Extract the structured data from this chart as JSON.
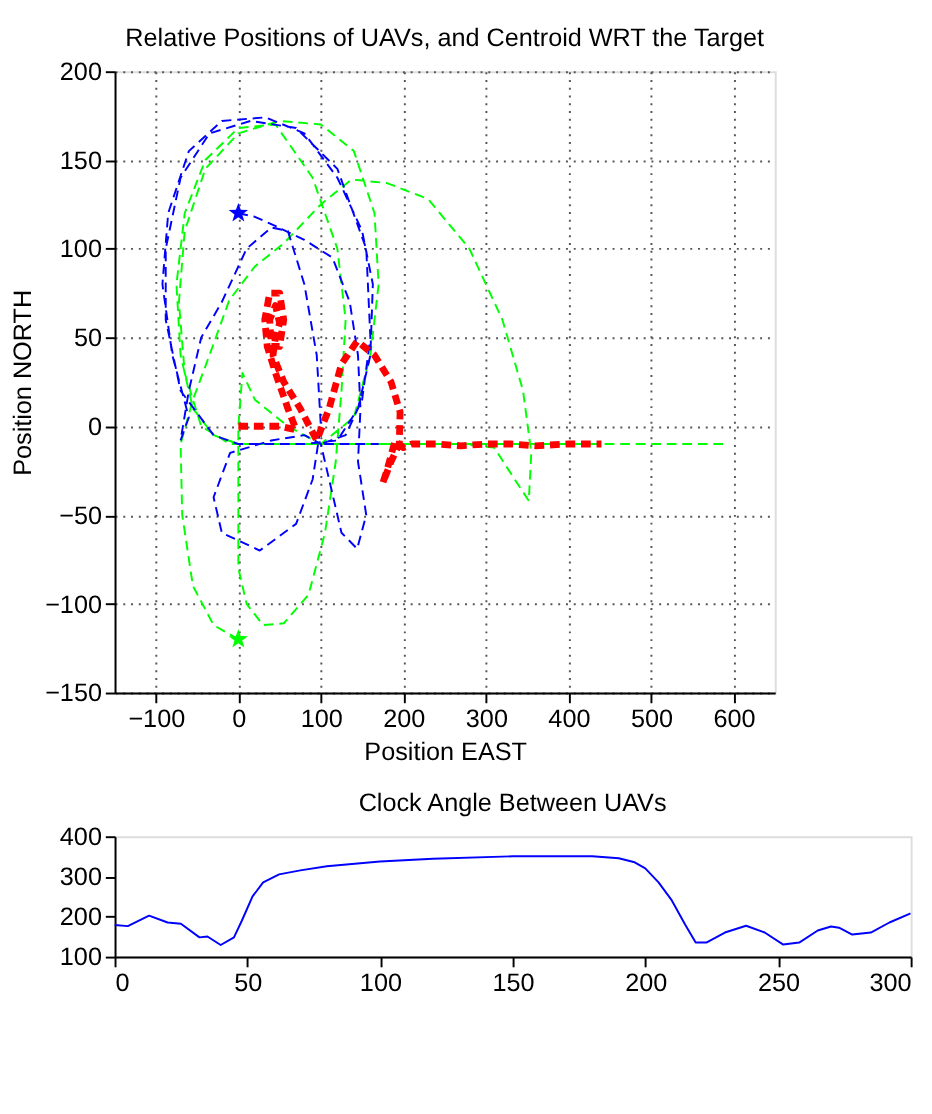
{
  "chart_data": [
    {
      "type": "line",
      "title": "Relative Positions of UAVs, and Centroid WRT the Target",
      "xlabel": "Position EAST",
      "ylabel": "Position NORTH",
      "xlim": [
        -150,
        650
      ],
      "ylim": [
        -150,
        200
      ],
      "xticks": [
        -100,
        0,
        100,
        200,
        300,
        400,
        500,
        600
      ],
      "yticks": [
        -150,
        -100,
        -50,
        0,
        50,
        100,
        150,
        200
      ],
      "grid": true,
      "series": [
        {
          "color": "#0000ff",
          "line_style": "dashed",
          "x": [
            0,
            20,
            44,
            80,
            114,
            135,
            145,
            148,
            145,
            155,
            144,
            125,
            110,
            100,
            80,
            40,
            -10,
            -30,
            -20,
            26,
            70,
            90,
            100,
            95,
            80,
            60,
            40,
            10,
            -20,
            -45,
            -60,
            -70,
            -60,
            -80,
            -92,
            -85,
            -60,
            -20,
            33,
            80,
            120,
            150,
            163,
            160,
            145,
            120,
            80,
            40,
            0,
            -30,
            -70,
            -88,
            -88,
            -70,
            -35,
            15,
            70,
            120,
            155,
            160,
            150,
            130,
            100,
            150,
            170
          ],
          "values": [
            120,
            118,
            113,
            105,
            95,
            70,
            40,
            10,
            -20,
            -50,
            -69,
            -60,
            -30,
            -10,
            -5,
            -8,
            -15,
            -40,
            -60,
            -70,
            -55,
            -30,
            0,
            40,
            80,
            110,
            112,
            100,
            70,
            50,
            20,
            -8,
            5,
            40,
            80,
            120,
            155,
            172,
            174,
            165,
            140,
            110,
            80,
            40,
            10,
            -8,
            -10,
            -10,
            -10,
            -5,
            20,
            60,
            100,
            140,
            165,
            172,
            168,
            145,
            100,
            50,
            15,
            -5,
            -10,
            -10,
            -10
          ]
        },
        {
          "color": "#00ff00",
          "line_style": "dashed",
          "x": [
            0,
            -30,
            -55,
            -68,
            -70,
            -55,
            -35,
            -11,
            20,
            55,
            100,
            137,
            180,
            230,
            280,
            320,
            345,
            355,
            352,
            335,
            310,
            270,
            220,
            170,
            130,
            100,
            60,
            20,
            5,
            0,
            0,
            0,
            10,
            30,
            55,
            85,
            105,
            118,
            125,
            130,
            120,
            90,
            45,
            0,
            -40,
            -65,
            -75,
            -70,
            -55,
            -30,
            0,
            50,
            100,
            140,
            160,
            170,
            165,
            140,
            100,
            50,
            0,
            -40,
            -65,
            -72,
            -65,
            -45,
            -10,
            50,
            120,
            200,
            300,
            400,
            500,
            590
          ],
          "values": [
            -120,
            -112,
            -90,
            -50,
            -10,
            15,
            40,
            71,
            90,
            103,
            125,
            139,
            137,
            128,
            100,
            60,
            20,
            -15,
            -42,
            -30,
            -12,
            -10,
            -10,
            -10,
            -10,
            -10,
            0,
            15,
            30,
            0,
            -40,
            -80,
            -100,
            -112,
            -111,
            -95,
            -60,
            -20,
            20,
            60,
            100,
            140,
            170,
            168,
            150,
            120,
            80,
            40,
            10,
            -5,
            -10,
            -10,
            -10,
            5,
            40,
            80,
            120,
            155,
            170,
            172,
            165,
            145,
            110,
            70,
            30,
            0,
            -10,
            -10,
            -10,
            -10,
            -10,
            -10,
            -10,
            -10
          ]
        },
        {
          "color": "#ff0000",
          "line_style": "dashed",
          "x": [
            0,
            50,
            70,
            60,
            45,
            35,
            32,
            38,
            50,
            55,
            50,
            40,
            38,
            45,
            50,
            45,
            42,
            55,
            75,
            95,
            110,
            125,
            144,
            165,
            185,
            196,
            195,
            185,
            175,
            180,
            190,
            200,
            210,
            240,
            270,
            300,
            330,
            360,
            400,
            440
          ],
          "values": [
            0,
            0,
            -2,
            10,
            30,
            45,
            60,
            75,
            75,
            60,
            45,
            45,
            60,
            68,
            58,
            50,
            40,
            25,
            10,
            -8,
            10,
            35,
            48,
            40,
            25,
            8,
            -10,
            -20,
            -32,
            -25,
            -8,
            -12,
            -10,
            -10,
            -11,
            -10,
            -10,
            -11,
            -10,
            -10
          ]
        },
        {
          "type": "scatter",
          "marker": "star",
          "color": "#0000ff",
          "x": [
            0
          ],
          "values": [
            120
          ]
        },
        {
          "type": "scatter",
          "marker": "star",
          "color": "#00ff00",
          "x": [
            0
          ],
          "values": [
            -120
          ]
        }
      ]
    },
    {
      "type": "line",
      "title": "Clock Angle Between UAVs",
      "xlim": [
        0,
        300
      ],
      "ylim": [
        100,
        400
      ],
      "xticks": [
        0,
        50,
        100,
        150,
        200,
        250,
        300
      ],
      "yticks": [
        100,
        200,
        300,
        400
      ],
      "grid": false,
      "series": [
        {
          "color": "#0000ff",
          "line_style": "solid",
          "x": [
            0,
            5,
            13,
            20,
            25,
            32,
            35,
            40,
            45,
            48,
            52,
            56,
            62,
            70,
            80,
            100,
            120,
            150,
            180,
            190,
            196,
            200,
            205,
            210,
            215,
            219,
            223,
            230,
            238,
            245,
            252,
            258,
            265,
            270,
            273,
            278,
            285,
            292,
            300
          ],
          "values": [
            179,
            176,
            202,
            185,
            182,
            148,
            150,
            129,
            148,
            190,
            250,
            285,
            305,
            315,
            325,
            337,
            344,
            350,
            350,
            345,
            335,
            320,
            285,
            240,
            180,
            135,
            135,
            160,
            177,
            160,
            130,
            135,
            165,
            175,
            172,
            155,
            160,
            185,
            208
          ]
        }
      ]
    }
  ]
}
